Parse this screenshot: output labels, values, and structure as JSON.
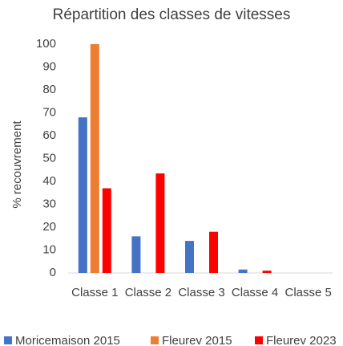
{
  "chart_data": {
    "type": "bar",
    "title": "Répartition des classes de vitesses",
    "y_label": "% recouvrement",
    "categories": [
      "Classe 1",
      "Classe 2",
      "Classe 3",
      "Classe 4",
      "Classe 5"
    ],
    "series": [
      {
        "name": "Moricemaison 2015",
        "color": "#4472c4",
        "values": [
          68,
          16,
          14,
          1.5,
          0
        ]
      },
      {
        "name": "Fleurev 2015",
        "color": "#ed7d31",
        "values": [
          100,
          0,
          0,
          0,
          0
        ]
      },
      {
        "name": "Fleurev 2023",
        "color": "#ff0000",
        "values": [
          37,
          43.5,
          18,
          1,
          0
        ]
      }
    ],
    "ylim": [
      0,
      100
    ],
    "yticks": [
      0,
      10,
      20,
      30,
      40,
      50,
      60,
      70,
      80,
      90,
      100
    ],
    "grid": false
  }
}
